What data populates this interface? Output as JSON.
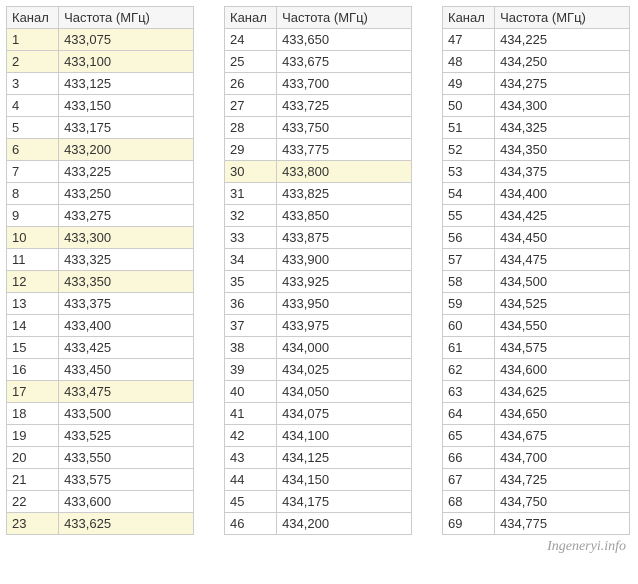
{
  "headers": {
    "channel": "Канал",
    "frequency": "Частота (МГц)"
  },
  "watermark": "Ingeneryi.info",
  "highlight_color": "#fbf8d9",
  "border_color": "#cccccc",
  "header_bg": "#f6f6f6",
  "text_color": "#333333",
  "fontsize": 13,
  "tables": [
    {
      "rows": [
        {
          "ch": "1",
          "fr": "433,075",
          "hl": true
        },
        {
          "ch": "2",
          "fr": "433,100",
          "hl": true
        },
        {
          "ch": "3",
          "fr": "433,125",
          "hl": false
        },
        {
          "ch": "4",
          "fr": "433,150",
          "hl": false
        },
        {
          "ch": "5",
          "fr": "433,175",
          "hl": false
        },
        {
          "ch": "6",
          "fr": "433,200",
          "hl": true
        },
        {
          "ch": "7",
          "fr": "433,225",
          "hl": false
        },
        {
          "ch": "8",
          "fr": "433,250",
          "hl": false
        },
        {
          "ch": "9",
          "fr": "433,275",
          "hl": false
        },
        {
          "ch": "10",
          "fr": "433,300",
          "hl": true
        },
        {
          "ch": "11",
          "fr": "433,325",
          "hl": false
        },
        {
          "ch": "12",
          "fr": "433,350",
          "hl": true
        },
        {
          "ch": "13",
          "fr": "433,375",
          "hl": false
        },
        {
          "ch": "14",
          "fr": "433,400",
          "hl": false
        },
        {
          "ch": "15",
          "fr": "433,425",
          "hl": false
        },
        {
          "ch": "16",
          "fr": "433,450",
          "hl": false
        },
        {
          "ch": "17",
          "fr": "433,475",
          "hl": true
        },
        {
          "ch": "18",
          "fr": "433,500",
          "hl": false
        },
        {
          "ch": "19",
          "fr": "433,525",
          "hl": false
        },
        {
          "ch": "20",
          "fr": "433,550",
          "hl": false
        },
        {
          "ch": "21",
          "fr": "433,575",
          "hl": false
        },
        {
          "ch": "22",
          "fr": "433,600",
          "hl": false
        },
        {
          "ch": "23",
          "fr": "433,625",
          "hl": true
        }
      ]
    },
    {
      "rows": [
        {
          "ch": "24",
          "fr": "433,650",
          "hl": false
        },
        {
          "ch": "25",
          "fr": "433,675",
          "hl": false
        },
        {
          "ch": "26",
          "fr": "433,700",
          "hl": false
        },
        {
          "ch": "27",
          "fr": "433,725",
          "hl": false
        },
        {
          "ch": "28",
          "fr": "433,750",
          "hl": false
        },
        {
          "ch": "29",
          "fr": "433,775",
          "hl": false
        },
        {
          "ch": "30",
          "fr": "433,800",
          "hl": true
        },
        {
          "ch": "31",
          "fr": "433,825",
          "hl": false
        },
        {
          "ch": "32",
          "fr": "433,850",
          "hl": false
        },
        {
          "ch": "33",
          "fr": "433,875",
          "hl": false
        },
        {
          "ch": "34",
          "fr": "433,900",
          "hl": false
        },
        {
          "ch": "35",
          "fr": "433,925",
          "hl": false
        },
        {
          "ch": "36",
          "fr": "433,950",
          "hl": false
        },
        {
          "ch": "37",
          "fr": "433,975",
          "hl": false
        },
        {
          "ch": "38",
          "fr": "434,000",
          "hl": false
        },
        {
          "ch": "39",
          "fr": "434,025",
          "hl": false
        },
        {
          "ch": "40",
          "fr": "434,050",
          "hl": false
        },
        {
          "ch": "41",
          "fr": "434,075",
          "hl": false
        },
        {
          "ch": "42",
          "fr": "434,100",
          "hl": false
        },
        {
          "ch": "43",
          "fr": "434,125",
          "hl": false
        },
        {
          "ch": "44",
          "fr": "434,150",
          "hl": false
        },
        {
          "ch": "45",
          "fr": "434,175",
          "hl": false
        },
        {
          "ch": "46",
          "fr": "434,200",
          "hl": false
        }
      ]
    },
    {
      "rows": [
        {
          "ch": "47",
          "fr": "434,225",
          "hl": false
        },
        {
          "ch": "48",
          "fr": "434,250",
          "hl": false
        },
        {
          "ch": "49",
          "fr": "434,275",
          "hl": false
        },
        {
          "ch": "50",
          "fr": "434,300",
          "hl": false
        },
        {
          "ch": "51",
          "fr": "434,325",
          "hl": false
        },
        {
          "ch": "52",
          "fr": "434,350",
          "hl": false
        },
        {
          "ch": "53",
          "fr": "434,375",
          "hl": false
        },
        {
          "ch": "54",
          "fr": "434,400",
          "hl": false
        },
        {
          "ch": "55",
          "fr": "434,425",
          "hl": false
        },
        {
          "ch": "56",
          "fr": "434,450",
          "hl": false
        },
        {
          "ch": "57",
          "fr": "434,475",
          "hl": false
        },
        {
          "ch": "58",
          "fr": "434,500",
          "hl": false
        },
        {
          "ch": "59",
          "fr": "434,525",
          "hl": false
        },
        {
          "ch": "60",
          "fr": "434,550",
          "hl": false
        },
        {
          "ch": "61",
          "fr": "434,575",
          "hl": false
        },
        {
          "ch": "62",
          "fr": "434,600",
          "hl": false
        },
        {
          "ch": "63",
          "fr": "434,625",
          "hl": false
        },
        {
          "ch": "64",
          "fr": "434,650",
          "hl": false
        },
        {
          "ch": "65",
          "fr": "434,675",
          "hl": false
        },
        {
          "ch": "66",
          "fr": "434,700",
          "hl": false
        },
        {
          "ch": "67",
          "fr": "434,725",
          "hl": false
        },
        {
          "ch": "68",
          "fr": "434,750",
          "hl": false
        },
        {
          "ch": "69",
          "fr": "434,775",
          "hl": false
        }
      ]
    }
  ]
}
